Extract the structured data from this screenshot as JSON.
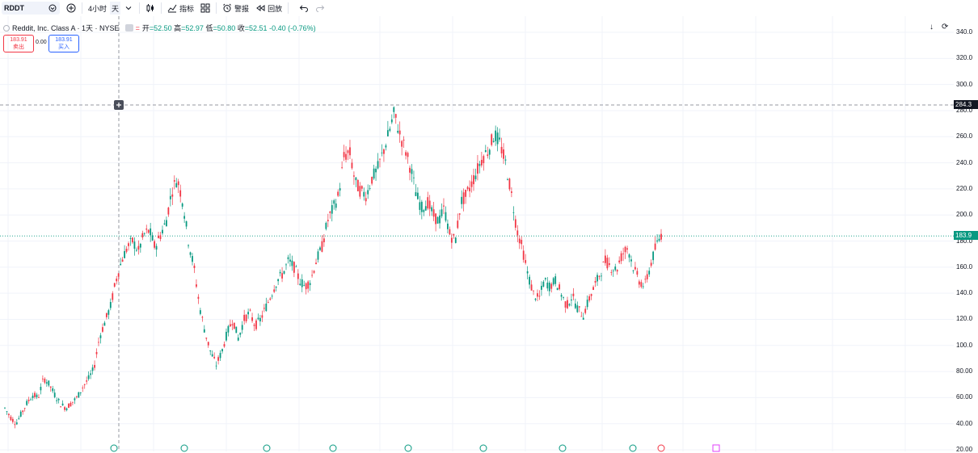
{
  "toolbar": {
    "symbol": "RDDT",
    "interval": "4小时",
    "interval2": "天",
    "indicators": "指标",
    "alerts": "警报",
    "replay": "回放"
  },
  "legend": {
    "title": "Reddit, Inc. Class A · 1天 · NYSE",
    "open_label": "开",
    "open": "=52.50",
    "high_label": "高",
    "high": "=52.97",
    "low_label": "低",
    "low": "=50.80",
    "close_label": "收",
    "close": "=52.51",
    "change": "-0.40 (-0.76%)"
  },
  "trade": {
    "sell_price": "183.91",
    "sell_label": "卖出",
    "spread": "0.00",
    "buy_price": "183.91",
    "buy_label": "买入"
  },
  "axis": {
    "labels": [
      "340.0",
      "320.0",
      "300.0",
      "280.0",
      "260.0",
      "240.0",
      "220.0",
      "200.0",
      "180.0",
      "160.0",
      "140.0",
      "120.0",
      "100.0",
      "80.00",
      "60.00",
      "40.00",
      "20.00"
    ],
    "crosshair_tag": "284.3",
    "last_price_tag": "183.9"
  },
  "colors": {
    "up": "#089981",
    "down": "#f23645",
    "grid": "#f0f3fa"
  },
  "chart_data": {
    "type": "candlestick",
    "symbol": "RDDT",
    "ylim": [
      20,
      340
    ],
    "path": [
      52,
      45,
      40,
      48,
      56,
      62,
      60,
      75,
      70,
      62,
      55,
      52,
      56,
      60,
      68,
      74,
      82,
      106,
      118,
      130,
      150,
      165,
      175,
      180,
      172,
      185,
      188,
      175,
      185,
      195,
      218,
      228,
      210,
      180,
      160,
      130,
      110,
      95,
      85,
      95,
      110,
      120,
      105,
      120,
      125,
      115,
      120,
      130,
      140,
      150,
      155,
      165,
      160,
      150,
      145,
      150,
      165,
      175,
      195,
      205,
      215,
      245,
      248,
      225,
      218,
      215,
      228,
      235,
      248,
      262,
      278,
      262,
      250,
      235,
      215,
      205,
      210,
      200,
      195,
      205,
      185,
      180,
      210,
      215,
      225,
      235,
      245,
      250,
      262,
      255,
      240,
      218,
      190,
      175,
      155,
      140,
      135,
      150,
      145,
      150,
      140,
      130,
      138,
      128,
      123,
      135,
      145,
      155,
      165,
      160,
      158,
      170,
      175,
      160,
      150,
      145,
      160,
      175,
      185
    ]
  }
}
